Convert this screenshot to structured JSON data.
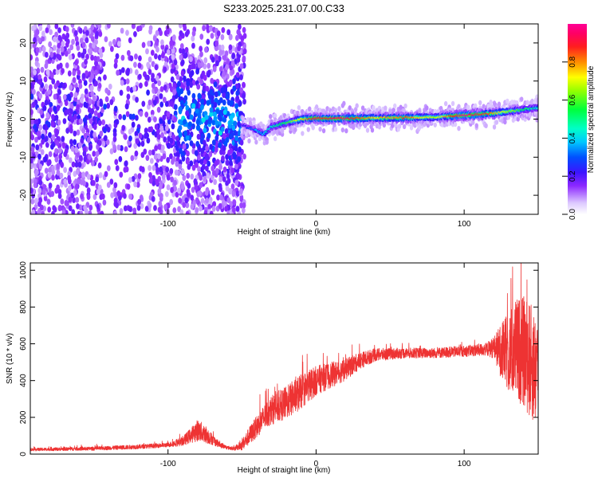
{
  "title": "S233.2025.231.07.00.C33",
  "chart_data": [
    {
      "type": "heatmap",
      "panel": "spectrogram",
      "xlabel": "Height of straight line (km)",
      "ylabel": "Frequency (Hz)",
      "xlim": [
        -193,
        150
      ],
      "ylim": [
        -25,
        25
      ],
      "xticks": [
        -100,
        0,
        100
      ],
      "xtick_labels": [
        "-100",
        "0",
        "100"
      ],
      "yticks": [
        -20,
        -10,
        0,
        10,
        20
      ],
      "ytick_labels": [
        "-20",
        "-10",
        "0",
        "10",
        "20"
      ],
      "colorbar": {
        "label": "Normalized spectral amplitude",
        "range": [
          0,
          1
        ],
        "ticks": [
          0.0,
          0.2,
          0.4,
          0.6,
          0.8
        ],
        "tick_labels": [
          "0.0",
          "0.2",
          "0.4",
          "0.6",
          "0.8"
        ]
      },
      "ridge": {
        "x": [
          -50,
          -40,
          -35,
          -30,
          -20,
          -10,
          0,
          20,
          40,
          60,
          80,
          100,
          120,
          140,
          150
        ],
        "frequency": [
          -1.5,
          -3,
          -4,
          -2,
          -1,
          0,
          0.2,
          0.2,
          0.3,
          0.4,
          0.5,
          1,
          1.5,
          2.5,
          3
        ],
        "amplitude": [
          0.15,
          0.3,
          0.35,
          0.4,
          0.5,
          0.7,
          0.85,
          0.9,
          0.7,
          0.8,
          0.6,
          0.95,
          0.75,
          0.5,
          0.4
        ]
      }
    },
    {
      "type": "line",
      "panel": "snr",
      "xlabel": "Height of straight line (km)",
      "ylabel": "SNR (10 * v/v)",
      "xlim": [
        -193,
        150
      ],
      "ylim": [
        0,
        1040
      ],
      "xticks": [
        -100,
        0,
        100
      ],
      "xtick_labels": [
        "-100",
        "0",
        "100"
      ],
      "yticks": [
        0,
        200,
        400,
        600,
        800,
        1000
      ],
      "ytick_labels": [
        "0",
        "200",
        "400",
        "600",
        "800",
        "1000"
      ],
      "color": "#ee3333",
      "series": [
        {
          "name": "SNR",
          "x": [
            -193,
            -150,
            -120,
            -100,
            -90,
            -85,
            -80,
            -75,
            -70,
            -65,
            -60,
            -55,
            -50,
            -45,
            -40,
            -35,
            -30,
            -25,
            -20,
            -15,
            -10,
            -5,
            0,
            10,
            20,
            30,
            40,
            60,
            80,
            100,
            115,
            120,
            125,
            130,
            135,
            140,
            145,
            150
          ],
          "values": [
            25,
            30,
            40,
            50,
            70,
            100,
            130,
            110,
            80,
            50,
            35,
            30,
            50,
            100,
            150,
            200,
            240,
            260,
            280,
            310,
            340,
            370,
            400,
            430,
            460,
            510,
            540,
            550,
            550,
            560,
            570,
            580,
            560,
            550,
            570,
            560,
            500,
            450
          ],
          "noise": [
            8,
            10,
            12,
            12,
            25,
            40,
            60,
            50,
            30,
            15,
            10,
            10,
            30,
            50,
            60,
            70,
            80,
            85,
            90,
            95,
            95,
            90,
            80,
            70,
            60,
            45,
            35,
            28,
            28,
            30,
            35,
            60,
            150,
            220,
            280,
            300,
            320,
            300
          ]
        }
      ]
    }
  ]
}
